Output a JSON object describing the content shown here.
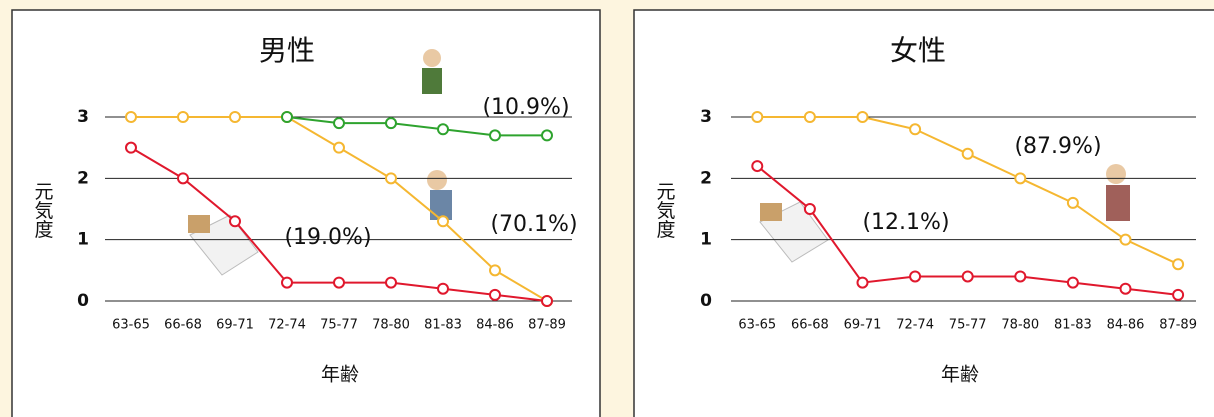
{
  "chart_data": [
    {
      "type": "line",
      "title": "男性",
      "x_label": "年齢",
      "y_label": "元気度",
      "categories": [
        "63-65",
        "66-68",
        "69-71",
        "72-74",
        "75-77",
        "78-80",
        "81-83",
        "84-86",
        "87-89"
      ],
      "series": [
        {
          "color": "#f5b731",
          "values": [
            3,
            3,
            3,
            3,
            2.5,
            2.0,
            1.3,
            0.5,
            0
          ]
        },
        {
          "color": "#2ea32e",
          "values": [
            null,
            null,
            null,
            3,
            2.9,
            2.9,
            2.8,
            2.7,
            2.7
          ]
        },
        {
          "color": "#e0182d",
          "values": [
            2.5,
            2.0,
            1.3,
            0.3,
            0.3,
            0.3,
            0.2,
            0.1,
            0
          ]
        }
      ],
      "annotations": [
        "(10.9%)",
        "(70.1%)",
        "(19.0%)"
      ],
      "ylim": [
        0,
        3
      ],
      "yticks": [
        0,
        1,
        2,
        3
      ],
      "grid": true
    },
    {
      "type": "line",
      "title": "女性",
      "x_label": "年齢",
      "y_label": "元気度",
      "categories": [
        "63-65",
        "66-68",
        "69-71",
        "72-74",
        "75-77",
        "78-80",
        "81-83",
        "84-86",
        "87-89"
      ],
      "series": [
        {
          "color": "#f5b731",
          "values": [
            3,
            3,
            3,
            2.8,
            2.4,
            2.0,
            1.6,
            1.0,
            0.6
          ]
        },
        {
          "color": "#e0182d",
          "values": [
            2.2,
            1.5,
            0.3,
            0.4,
            0.4,
            0.4,
            0.3,
            0.2,
            0.1
          ]
        }
      ],
      "annotations": [
        "(87.9%)",
        "(12.1%)"
      ],
      "ylim": [
        0,
        3
      ],
      "yticks": [
        0,
        1,
        2,
        3
      ],
      "grid": true
    }
  ]
}
